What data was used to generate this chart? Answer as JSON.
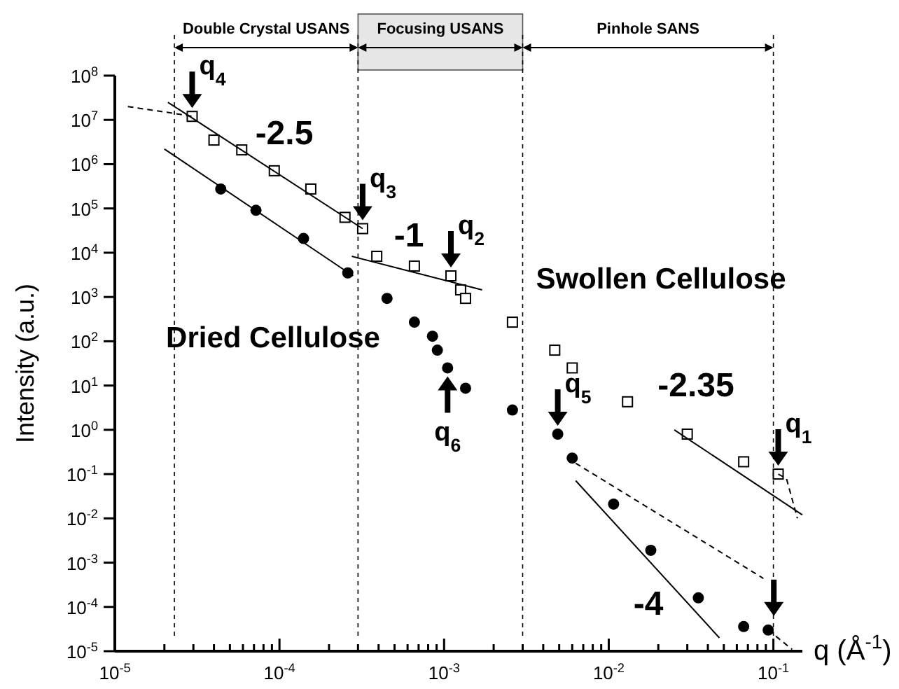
{
  "chart_data": {
    "type": "scatter",
    "xlabel": "q (Å$^{-1}$)",
    "ylabel": "Intensity (a.u.)",
    "log": "xy",
    "grid": false,
    "xlim": [
      1e-05,
      0.15
    ],
    "ylim": [
      1e-05,
      100000000.0
    ],
    "xticks": [
      {
        "value": 1e-05,
        "label": "10$^{-5}$"
      },
      {
        "value": 2e-05,
        "label": null
      },
      {
        "value": 3e-05,
        "label": null
      },
      {
        "value": 4e-05,
        "label": null
      },
      {
        "value": 5e-05,
        "label": null
      },
      {
        "value": 6e-05,
        "label": null
      },
      {
        "value": 7e-05,
        "label": null
      },
      {
        "value": 8e-05,
        "label": null
      },
      {
        "value": 9e-05,
        "label": null
      },
      {
        "value": 0.0001,
        "label": "10$^{-4}$"
      },
      {
        "value": 0.0002,
        "label": null
      },
      {
        "value": 0.0003,
        "label": null
      },
      {
        "value": 0.0004,
        "label": null
      },
      {
        "value": 0.0005,
        "label": null
      },
      {
        "value": 0.0006,
        "label": null
      },
      {
        "value": 0.0007,
        "label": null
      },
      {
        "value": 0.0008,
        "label": null
      },
      {
        "value": 0.0009,
        "label": null
      },
      {
        "value": 0.001,
        "label": "10$^{-3}$"
      },
      {
        "value": 0.002,
        "label": null
      },
      {
        "value": 0.003,
        "label": null
      },
      {
        "value": 0.004,
        "label": null
      },
      {
        "value": 0.005,
        "label": null
      },
      {
        "value": 0.006,
        "label": null
      },
      {
        "value": 0.007,
        "label": null
      },
      {
        "value": 0.008,
        "label": null
      },
      {
        "value": 0.009,
        "label": null
      },
      {
        "value": 0.01,
        "label": "10$^{-2}$"
      },
      {
        "value": 0.02,
        "label": null
      },
      {
        "value": 0.03,
        "label": null
      },
      {
        "value": 0.04,
        "label": null
      },
      {
        "value": 0.05,
        "label": null
      },
      {
        "value": 0.06,
        "label": null
      },
      {
        "value": 0.07,
        "label": null
      },
      {
        "value": 0.08,
        "label": null
      },
      {
        "value": 0.09,
        "label": null
      },
      {
        "value": 0.1,
        "label": "10$^{-1}$"
      }
    ],
    "yticks": [
      {
        "value": 1e-05,
        "label": "10$^{-5}$"
      },
      {
        "value": 0.0001,
        "label": "10$^{-4}$"
      },
      {
        "value": 0.001,
        "label": "10$^{-3}$"
      },
      {
        "value": 0.01,
        "label": "10$^{-2}$"
      },
      {
        "value": 0.1,
        "label": "10$^{-1}$"
      },
      {
        "value": 1,
        "label": "10$^{0}$"
      },
      {
        "value": 10,
        "label": "10$^{1}$"
      },
      {
        "value": 100,
        "label": "10$^{2}$"
      },
      {
        "value": 1000.0,
        "label": "10$^{3}$"
      },
      {
        "value": 10000.0,
        "label": "10$^{4}$"
      },
      {
        "value": 100000.0,
        "label": "10$^{5}$"
      },
      {
        "value": 1000000.0,
        "label": "10$^{6}$"
      },
      {
        "value": 10000000.0,
        "label": "10$^{7}$"
      },
      {
        "value": 100000000.0,
        "label": "10$^{8}$"
      }
    ],
    "series": [
      {
        "type": "scatter",
        "marker": "square",
        "color": "#000000",
        "x": [
          2.95e-05,
          4e-05,
          5.9e-05,
          9.3e-05,
          0.000155,
          0.00025,
          0.00032,
          0.00039,
          0.00066,
          0.0011,
          0.00126,
          0.00135,
          0.0026,
          0.0047,
          0.006,
          0.013,
          0.03,
          0.066,
          0.107
        ],
        "values": [
          12000000.0,
          3500000.0,
          2100000.0,
          710000.0,
          275000.0,
          63000.0,
          35000.0,
          8300.0,
          5000.0,
          3000.0,
          1450.0,
          930.0,
          270.0,
          63,
          25,
          4.3,
          0.8,
          0.19,
          0.1
        ]
      },
      {
        "type": "scatter",
        "marker": "circle",
        "color": "#000000",
        "x": [
          4.4e-05,
          7.2e-05,
          0.00014,
          0.00026,
          0.00045,
          0.00066,
          0.00085,
          0.00091,
          0.00105,
          0.00135,
          0.0026,
          0.0049,
          0.006,
          0.0107,
          0.018,
          0.035,
          0.066,
          0.093
        ],
        "values": [
          275000.0,
          91000.0,
          21000.0,
          3500.0,
          930.0,
          270.0,
          130.0,
          63,
          25,
          8.7,
          2.8,
          0.8,
          0.23,
          0.021,
          0.0019,
          0.00016,
          3.6e-05,
          3e-05
        ]
      },
      {
        "type": "line",
        "line_style": "solid",
        "color": "#000000",
        "x": [
          2.1e-05,
          0.00032
        ],
        "values": [
          25000000.0,
          35000.0
        ]
      },
      {
        "type": "line",
        "line_style": "solid",
        "color": "#000000",
        "x": [
          2e-05,
          0.00028
        ],
        "values": [
          2200000.0,
          3000.0
        ]
      },
      {
        "type": "line",
        "line_style": "solid",
        "color": "#000000",
        "x": [
          0.000275,
          0.0017
        ],
        "values": [
          8300.0,
          1450.0
        ]
      },
      {
        "type": "line",
        "line_style": "solid",
        "color": "#000000",
        "x": [
          0.025,
          0.15
        ],
        "values": [
          1.0,
          0.012
        ]
      },
      {
        "type": "line",
        "line_style": "solid",
        "color": "#000000",
        "x": [
          0.0063,
          0.047
        ],
        "values": [
          0.071,
          2e-05
        ]
      },
      {
        "type": "line",
        "line_style": "dashed",
        "color": "#000000",
        "x": [
          0.0056,
          0.087
        ],
        "values": [
          0.23,
          0.00044
        ]
      },
      {
        "type": "line",
        "line_style": "dashed",
        "color": "#000000",
        "x": [
          1.2e-05,
          2.3e-05,
          2.95e-05
        ],
        "values": [
          20000000.0,
          14000000.0,
          12000000.0
        ]
      },
      {
        "type": "line",
        "line_style": "dashed",
        "color": "#000000",
        "x": [
          0.107,
          0.12,
          0.14
        ],
        "values": [
          0.1,
          0.08,
          0.01
        ]
      },
      {
        "type": "line",
        "line_style": "dashed",
        "color": "#000000",
        "x": [
          0.093,
          0.13
        ],
        "values": [
          3e-05,
          1.1e-05
        ]
      }
    ],
    "ref_lines": [
      {
        "axis": "x",
        "value": 2.3e-05,
        "line_style": "dashed"
      },
      {
        "axis": "x",
        "value": 0.0003,
        "line_style": "dashed"
      },
      {
        "axis": "x",
        "value": 0.003,
        "line_style": "dashed"
      },
      {
        "axis": "x",
        "value": 0.1,
        "line_style": "dashed"
      }
    ],
    "annotations": [
      {
        "text": "q$_{4}$",
        "x": 2.95e-05,
        "y": 12000000.0
      },
      {
        "text": "q$_{3}$",
        "x": 0.00032,
        "y": 35000.0
      },
      {
        "text": "q$_{2}$",
        "x": 0.0011,
        "y": 3000.0
      },
      {
        "text": "q$_{1}$",
        "x": 0.107,
        "y": 0.1
      },
      {
        "text": "q$_{5}$",
        "x": 0.0049,
        "y": 0.8
      },
      {
        "text": "q$_{6}$",
        "x": 0.00105,
        "y": 25
      },
      "Double Crystal USANS",
      "Focusing USANS",
      "Pinhole SANS",
      "-2.5",
      "-1",
      "-2.35",
      "-4",
      "Swollen Cellulose",
      "Dried Cellulose"
    ]
  }
}
